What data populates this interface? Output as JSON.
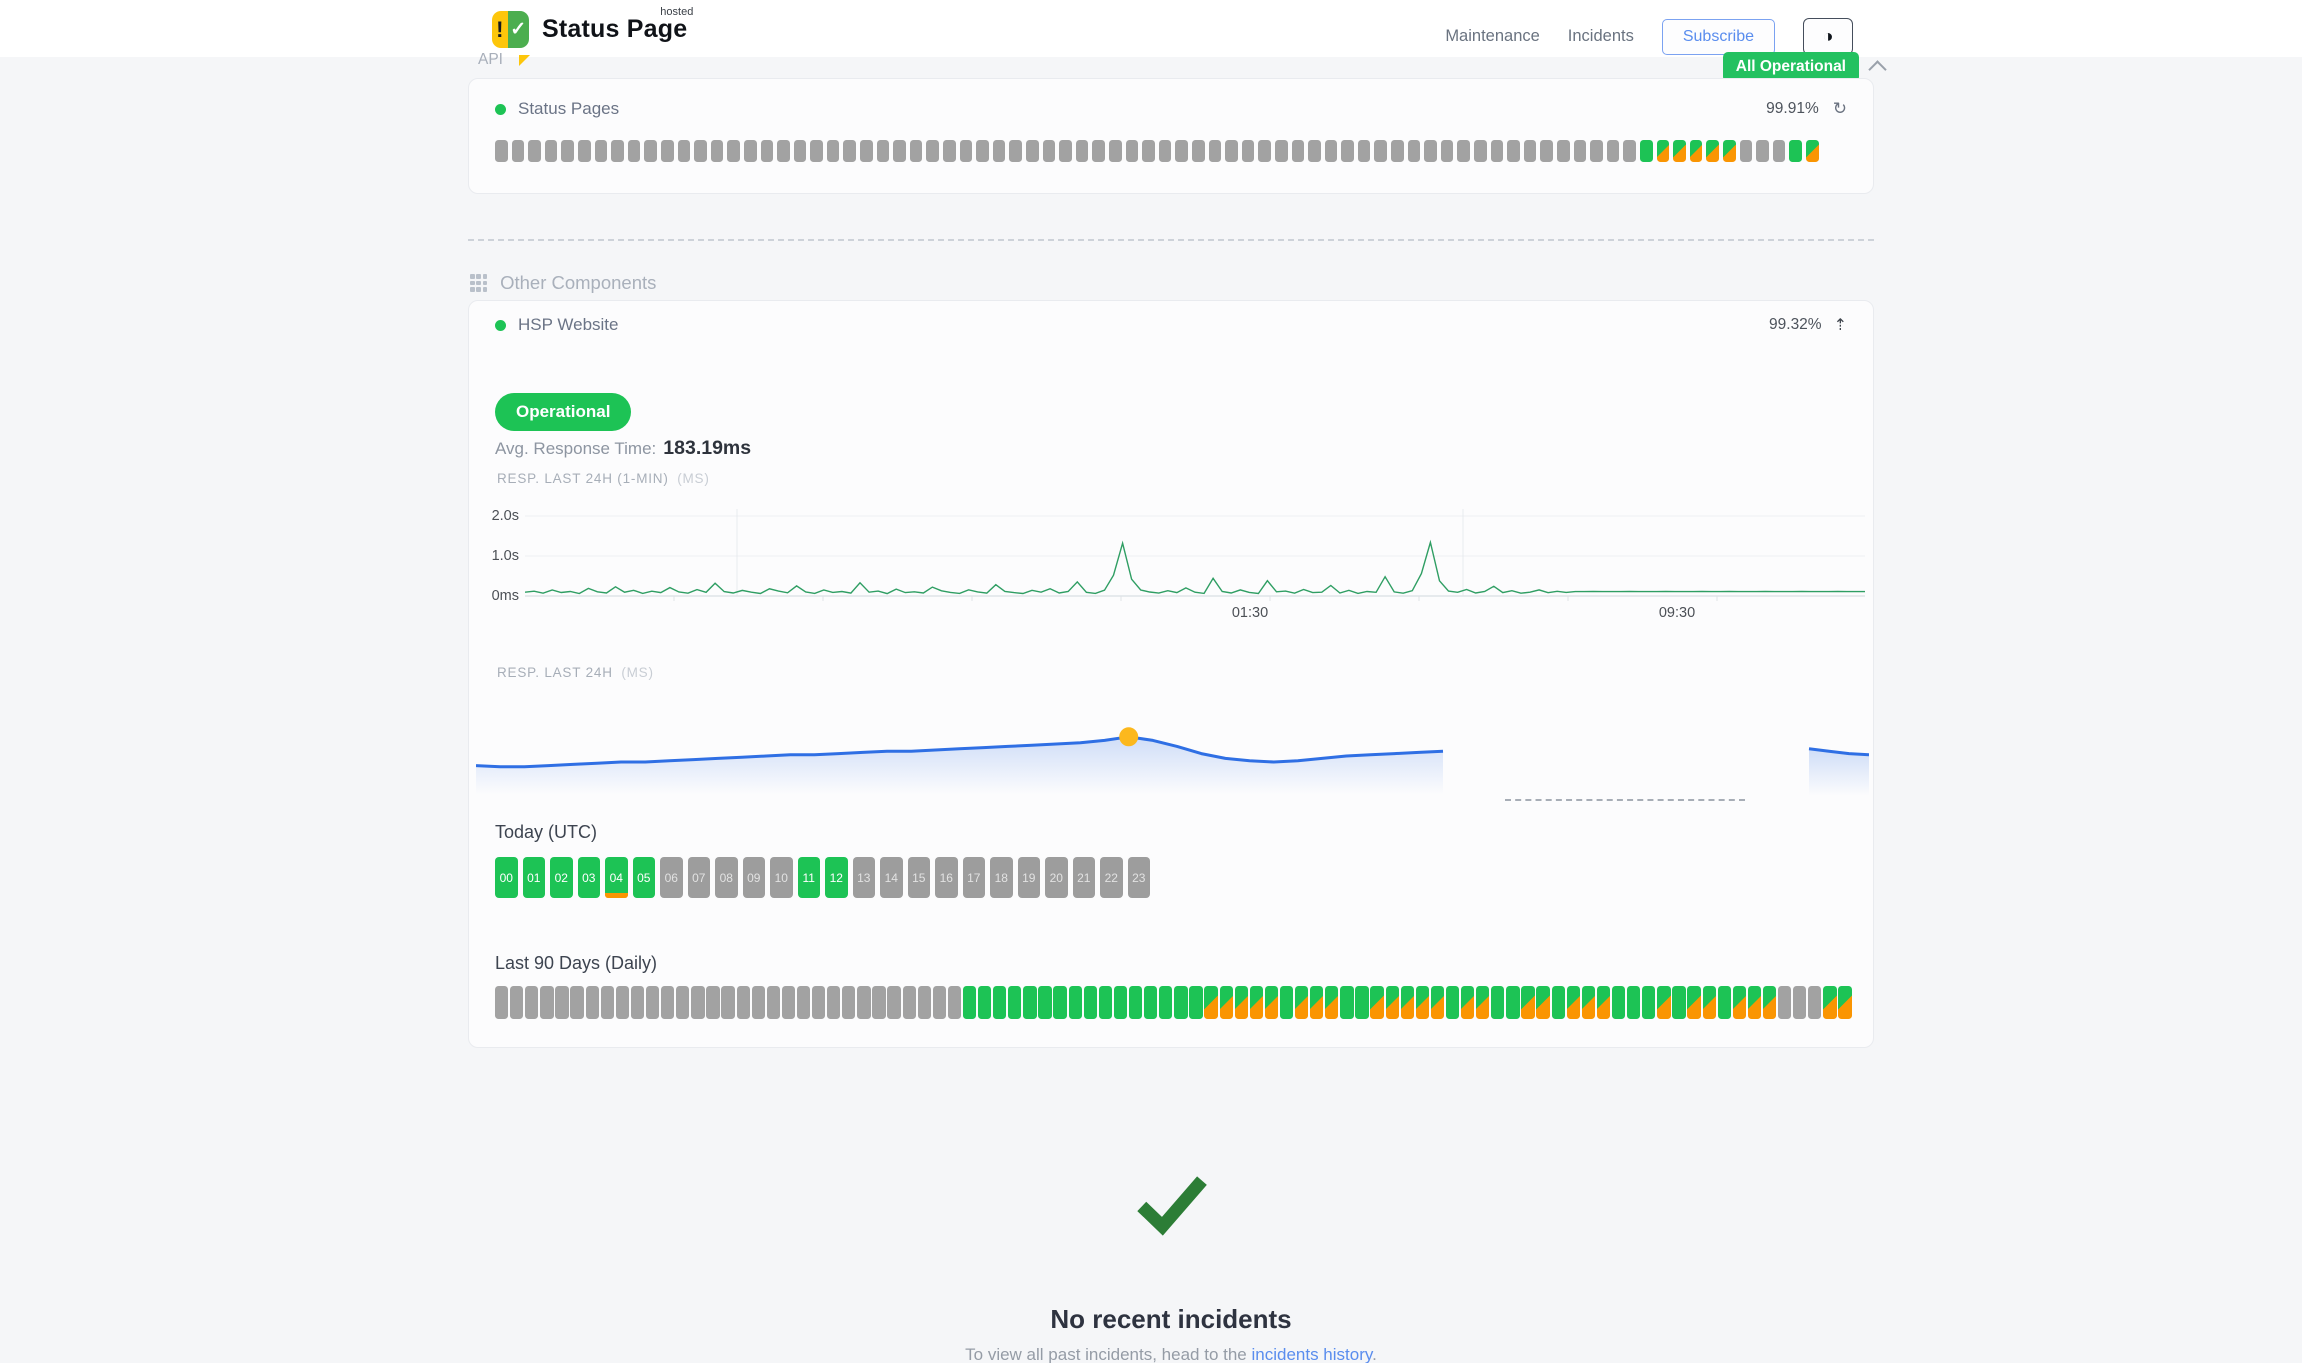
{
  "header": {
    "brand": "Status Page",
    "brand_superscript": "hosted",
    "nav": [
      {
        "label": "Maintenance"
      },
      {
        "label": "Incidents"
      }
    ],
    "subscribe_label": "Subscribe",
    "theme_toggle_icon": "half-circle",
    "overall_status": "All Operational"
  },
  "api_section": {
    "title": "API",
    "component_name": "Status Pages",
    "uptime_pct": "99.91%",
    "refresh_icon": "refresh-arrow",
    "bars": [
      [
        "gray",
        69
      ],
      [
        "green",
        1
      ],
      [
        "split",
        5
      ],
      [
        "gray",
        3
      ],
      [
        "green",
        1
      ],
      [
        "split",
        1
      ]
    ]
  },
  "other_section": {
    "heading": "Other Components",
    "component": {
      "name": "HSP Website",
      "uptime_pct": "99.32%",
      "trend_icon": "arrow-up-dashed",
      "status": "Operational",
      "avg_label": "Avg. Response Time:",
      "avg_value": "183.19ms",
      "today_heading": "Today (UTC)",
      "today_hours": [
        {
          "label": "00",
          "status": "green"
        },
        {
          "label": "01",
          "status": "green"
        },
        {
          "label": "02",
          "status": "green"
        },
        {
          "label": "03",
          "status": "green"
        },
        {
          "label": "04",
          "status": "green",
          "incident": true
        },
        {
          "label": "05",
          "status": "green"
        },
        {
          "label": "06",
          "status": "gray"
        },
        {
          "label": "07",
          "status": "gray"
        },
        {
          "label": "08",
          "status": "gray"
        },
        {
          "label": "09",
          "status": "gray"
        },
        {
          "label": "10",
          "status": "gray"
        },
        {
          "label": "11",
          "status": "green"
        },
        {
          "label": "12",
          "status": "green"
        },
        {
          "label": "13",
          "status": "gray"
        },
        {
          "label": "14",
          "status": "gray"
        },
        {
          "label": "15",
          "status": "gray"
        },
        {
          "label": "16",
          "status": "gray"
        },
        {
          "label": "17",
          "status": "gray"
        },
        {
          "label": "18",
          "status": "gray"
        },
        {
          "label": "19",
          "status": "gray"
        },
        {
          "label": "20",
          "status": "gray"
        },
        {
          "label": "21",
          "status": "gray"
        },
        {
          "label": "22",
          "status": "gray"
        },
        {
          "label": "23",
          "status": "gray"
        }
      ],
      "last90_heading": "Last 90 Days (Daily)",
      "last90_bars": [
        [
          "gray",
          31
        ],
        [
          "green",
          16
        ],
        [
          "split",
          5
        ],
        [
          "green",
          1
        ],
        [
          "split",
          3
        ],
        [
          "green",
          2
        ],
        [
          "split",
          5
        ],
        [
          "green",
          1
        ],
        [
          "split",
          2
        ],
        [
          "green",
          2
        ],
        [
          "split",
          2
        ],
        [
          "green",
          1
        ],
        [
          "split",
          3
        ],
        [
          "green",
          3
        ],
        [
          "split",
          1
        ],
        [
          "green",
          1
        ],
        [
          "split",
          2
        ],
        [
          "green",
          1
        ],
        [
          "split",
          3
        ],
        [
          "gray",
          3
        ],
        [
          "split",
          2
        ]
      ],
      "chart_data": [
        {
          "type": "line",
          "title": "RESP. LAST 24H (1-MIN)",
          "unit": "(MS)",
          "ylabel_ticks": [
            "2.0s",
            "1.0s",
            "0ms"
          ],
          "xticks": [
            "01:30",
            "09:30"
          ],
          "ylim_ms": [
            0,
            2250
          ],
          "line_color": "#2f9e63",
          "values": [
            95,
            120,
            70,
            150,
            88,
            112,
            62,
            190,
            105,
            75,
            230,
            95,
            142,
            65,
            120,
            85,
            210,
            100,
            70,
            160,
            92,
            320,
            110,
            75,
            140,
            95,
            62,
            180,
            122,
            80,
            252,
            100,
            66,
            150,
            90,
            112,
            72,
            330,
            95,
            122,
            60,
            172,
            85,
            105,
            75,
            222,
            130,
            90,
            66,
            155,
            102,
            72,
            282,
            115,
            85,
            62,
            142,
            95,
            182,
            76,
            112,
            352,
            92,
            66,
            145,
            520,
            1320,
            420,
            150,
            100,
            72,
            132,
            85,
            202,
            95,
            66,
            442,
            112,
            76,
            152,
            90,
            62,
            382,
            105,
            122,
            70,
            162,
            85,
            95,
            262,
            76,
            142,
            66,
            112,
            92,
            482,
            102,
            70,
            132,
            560,
            1340,
            380,
            122,
            92,
            162,
            76,
            112,
            242,
            86,
            132,
            70,
            96,
            152,
            82,
            118,
            90,
            110,
            110,
            112,
            110,
            111,
            110,
            112,
            111,
            110,
            111,
            112,
            110,
            111,
            110,
            112,
            111,
            110,
            112,
            111,
            110,
            111,
            112,
            110,
            111,
            110,
            112,
            111,
            110,
            111,
            112,
            110,
            111,
            110
          ]
        },
        {
          "type": "area",
          "title": "RESP. LAST 24H",
          "unit": "(MS)",
          "line_color": "#2f6fe4",
          "marker_color": "#fcb81d",
          "marker_index": 27,
          "values": [
            172,
            171,
            171,
            172,
            173,
            174,
            175,
            175,
            176,
            177,
            178,
            179,
            180,
            181,
            181,
            182,
            183,
            184,
            184,
            185,
            186,
            187,
            188,
            189,
            190,
            191,
            193,
            196,
            193,
            188,
            182,
            178,
            176,
            175,
            176,
            178,
            180,
            181,
            182,
            183,
            184
          ],
          "right_segment_values": [
            186,
            184,
            182,
            181
          ]
        }
      ]
    }
  },
  "incidents": {
    "title": "No recent incidents",
    "subtitle_prefix": "To view all past incidents, head to the ",
    "link_label": "incidents history",
    "subtitle_suffix": "."
  },
  "colors": {
    "green": "#1dc355",
    "orange": "#fa9502",
    "gray_bar": "#a2a2a2",
    "badge_green": "#23c160",
    "green_line": "#2f9e63",
    "blue_line": "#2f6fe4",
    "marker_yellow": "#fcb81d",
    "link_blue": "#5a8dee",
    "check_green": "#2c7d36"
  }
}
